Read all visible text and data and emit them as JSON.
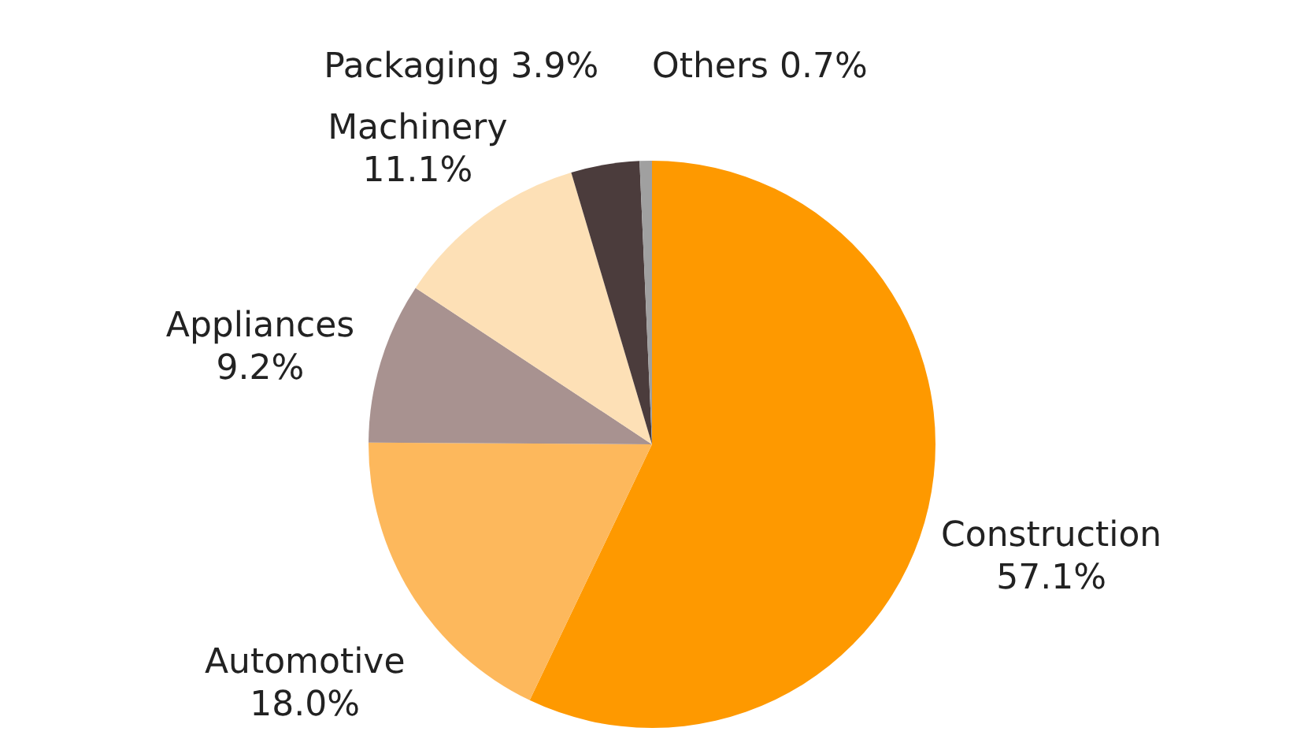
{
  "chart_data": {
    "type": "pie",
    "categories": [
      "Construction",
      "Automotive",
      "Appliances",
      "Machinery",
      "Packaging",
      "Others"
    ],
    "values": [
      57.1,
      18.0,
      9.2,
      11.1,
      3.9,
      0.7
    ],
    "value_labels": [
      "57.1%",
      "18.0%",
      "9.2%",
      "11.1%",
      "3.9%",
      "0.7%"
    ],
    "colors": [
      "#fe9900",
      "#fdb85c",
      "#a89290",
      "#fde0b6",
      "#4b3c3c",
      "#a0a0a0"
    ]
  }
}
